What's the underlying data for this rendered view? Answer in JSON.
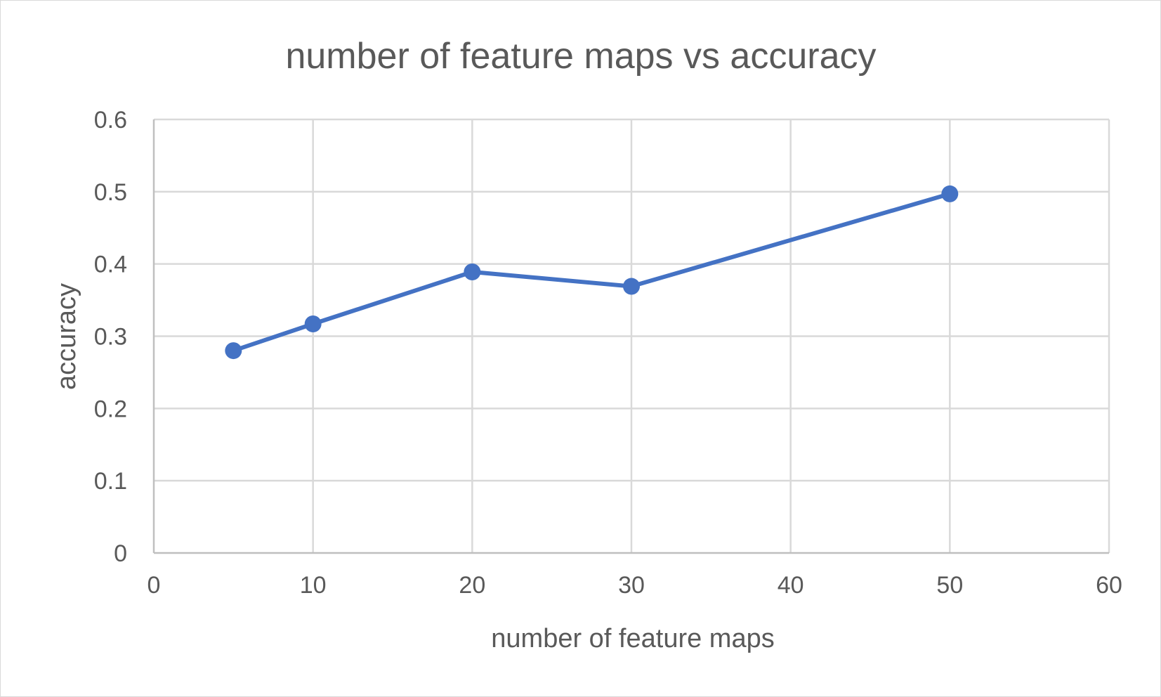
{
  "chart_data": {
    "type": "line",
    "title": "number of feature maps vs accuracy",
    "xlabel": "number of feature maps",
    "ylabel": "accuracy",
    "xlim": [
      0,
      60
    ],
    "ylim": [
      0,
      0.6
    ],
    "x_ticks": [
      "0",
      "10",
      "20",
      "30",
      "40",
      "50",
      "60"
    ],
    "y_ticks": [
      "0",
      "0.1",
      "0.2",
      "0.3",
      "0.4",
      "0.5",
      "0.6"
    ],
    "grid": true,
    "legend": "none",
    "series": [
      {
        "x": [
          5,
          10,
          20,
          30,
          50
        ],
        "y": [
          0.28,
          0.317,
          0.389,
          0.369,
          0.497
        ],
        "color": "#4472c4",
        "marker": "circle"
      }
    ]
  }
}
